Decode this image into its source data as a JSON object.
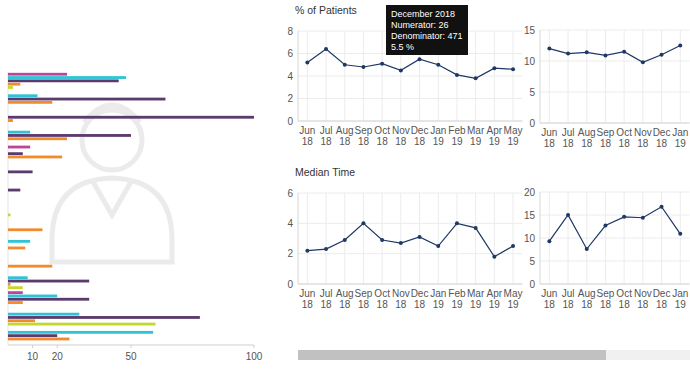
{
  "chart_data": [
    {
      "type": "bar",
      "orientation": "horizontal",
      "grid": false,
      "tick_labels": "x",
      "categories": [
        null,
        null,
        null,
        null,
        null,
        null,
        null,
        null,
        null,
        null,
        null,
        null,
        null,
        null,
        null
      ],
      "xlim": [
        0,
        100
      ],
      "xticks": [
        10,
        20,
        50,
        100
      ],
      "series": [
        {
          "color": "#c0429a",
          "values": [
            24,
            null,
            null,
            null,
            9,
            null,
            null,
            null,
            null,
            null,
            null,
            null,
            6,
            null,
            null
          ]
        },
        {
          "color": "#2ec4d6",
          "values": [
            48,
            12,
            null,
            9,
            null,
            null,
            null,
            null,
            null,
            9,
            null,
            8,
            20,
            29,
            59
          ]
        },
        {
          "color": "#5b3a6e",
          "values": [
            45,
            64,
            100,
            50,
            6,
            10,
            5,
            null,
            null,
            null,
            null,
            33,
            33,
            78,
            20
          ]
        },
        {
          "color": "#f28b2c",
          "values": [
            5,
            18,
            2,
            24,
            22,
            null,
            null,
            null,
            14,
            7,
            18,
            1,
            6,
            11,
            25
          ]
        },
        {
          "color": "#c5d92d",
          "values": [
            2,
            null,
            null,
            null,
            null,
            null,
            null,
            1,
            null,
            null,
            null,
            6,
            null,
            60,
            null
          ]
        }
      ]
    },
    {
      "type": "line",
      "title": "% of Patients",
      "grid": true,
      "marker": "circle",
      "color": "#1f3864",
      "categories": [
        "Jun 18",
        "Jul 18",
        "Aug 18",
        "Sep 18",
        "Oct 18",
        "Nov 18",
        "Dec 18",
        "Jan 19",
        "Feb 19",
        "Mar 19",
        "Apr 19",
        "May 19"
      ],
      "values": [
        5.2,
        6.4,
        5.0,
        4.8,
        5.1,
        4.5,
        5.5,
        5.0,
        4.1,
        3.8,
        4.7,
        4.6
      ],
      "ylim": [
        0,
        8
      ],
      "yticks": [
        0,
        2,
        4,
        6,
        8
      ],
      "annotations": [
        "December 2018",
        "Numerator: 26",
        "Denominator: 471",
        "5.5 %"
      ]
    },
    {
      "type": "line",
      "grid": true,
      "marker": "circle",
      "color": "#1f3864",
      "categories": [
        "Jun 18",
        "Jul 18",
        "Aug 18",
        "Sep 18",
        "Oct 18",
        "Nov 18",
        "Dec 18",
        "Jan 19"
      ],
      "values": [
        12.0,
        11.2,
        11.4,
        10.9,
        11.5,
        9.8,
        11.0,
        12.5
      ],
      "ylim": [
        0,
        15
      ],
      "yticks": [
        0,
        5,
        10,
        15
      ]
    },
    {
      "type": "line",
      "title": "Median Time",
      "grid": true,
      "marker": "circle",
      "color": "#1f3864",
      "categories": [
        "Jun 18",
        "Jul 18",
        "Aug 18",
        "Sep 18",
        "Oct 18",
        "Nov 18",
        "Dec 18",
        "Jan 19",
        "Feb 19",
        "Mar 19",
        "Apr 19",
        "May 19"
      ],
      "values": [
        2.2,
        2.3,
        2.9,
        4.0,
        2.9,
        2.7,
        3.1,
        2.5,
        4.0,
        3.7,
        1.8,
        2.5
      ],
      "ylim": [
        0,
        6
      ],
      "yticks": [
        0,
        2,
        4,
        6
      ]
    },
    {
      "type": "line",
      "grid": true,
      "marker": "circle",
      "color": "#1f3864",
      "categories": [
        "Jun 18",
        "Jul 18",
        "Aug 18",
        "Sep 18",
        "Oct 18",
        "Nov 18",
        "Dec 18",
        "Jan 19"
      ],
      "values": [
        9.3,
        15.0,
        7.6,
        12.7,
        14.6,
        14.4,
        16.8,
        10.9
      ],
      "ylim": [
        0,
        20
      ],
      "yticks": [
        0,
        5,
        10,
        15,
        20
      ]
    }
  ]
}
